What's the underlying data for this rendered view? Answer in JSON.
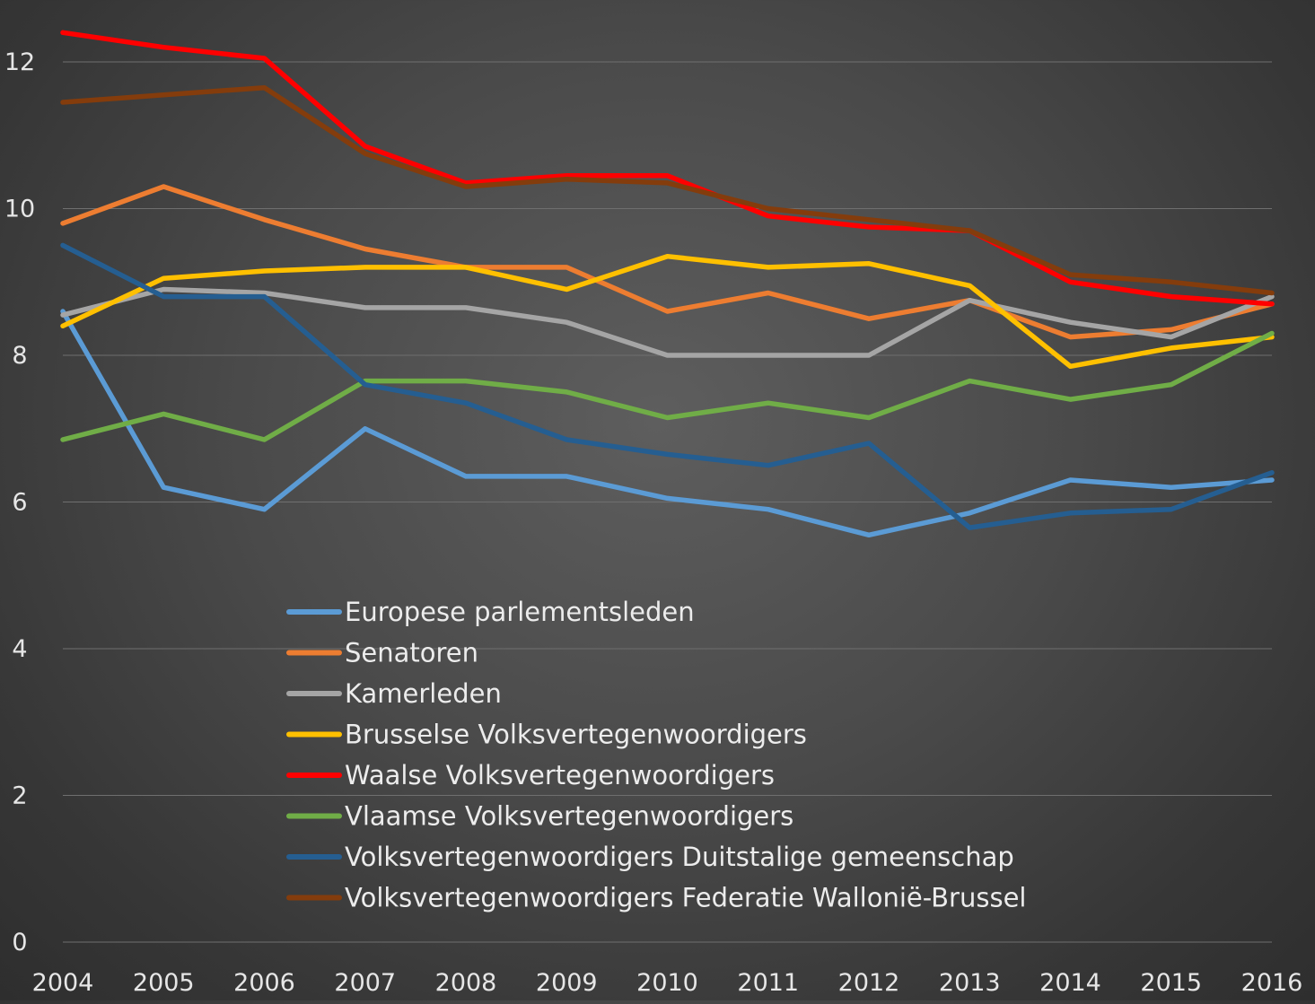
{
  "chart_data": {
    "type": "line",
    "title": "",
    "xlabel": "",
    "ylabel": "",
    "ylim": [
      0,
      12.6
    ],
    "yticks": [
      "0",
      "2",
      "4",
      "6",
      "8",
      "10",
      "12"
    ],
    "ytick_values": [
      0,
      2,
      4,
      6,
      8,
      10,
      12
    ],
    "categories": [
      "2004",
      "2005",
      "2006",
      "2007",
      "2008",
      "2009",
      "2010",
      "2011",
      "2012",
      "2013",
      "2014",
      "2015",
      "2016"
    ],
    "grid": true,
    "legend_position": "center-left, inside plot",
    "series": [
      {
        "name": "Europese parlementsleden",
        "color": "#5b9bd5",
        "values": [
          8.6,
          6.2,
          5.9,
          7.0,
          6.35,
          6.35,
          6.05,
          5.9,
          5.55,
          5.85,
          6.3,
          6.2,
          6.3
        ]
      },
      {
        "name": "Senatoren",
        "color": "#ed7d31",
        "values": [
          9.8,
          10.3,
          9.85,
          9.45,
          9.2,
          9.2,
          8.6,
          8.85,
          8.5,
          8.75,
          8.25,
          8.35,
          8.7
        ]
      },
      {
        "name": "Kamerleden",
        "color": "#a5a5a5",
        "values": [
          8.55,
          8.9,
          8.85,
          8.65,
          8.65,
          8.45,
          8.0,
          8.0,
          8.0,
          8.75,
          8.45,
          8.25,
          8.8
        ]
      },
      {
        "name": "Brusselse Volksvertegenwoordigers",
        "color": "#ffc000",
        "values": [
          8.4,
          9.05,
          9.15,
          9.2,
          9.2,
          8.9,
          9.35,
          9.2,
          9.25,
          8.95,
          7.85,
          8.1,
          8.25
        ]
      },
      {
        "name": "Waalse Volksvertegenwoordigers",
        "color": "#ff0000",
        "values": [
          12.4,
          12.2,
          12.05,
          10.85,
          10.35,
          10.45,
          10.45,
          9.9,
          9.75,
          9.7,
          9.0,
          8.8,
          8.7
        ]
      },
      {
        "name": "Vlaamse Volksvertegenwoordigers",
        "color": "#70ad47",
        "values": [
          6.85,
          7.2,
          6.85,
          7.65,
          7.65,
          7.5,
          7.15,
          7.35,
          7.15,
          7.65,
          7.4,
          7.6,
          8.3
        ]
      },
      {
        "name": "Volksvertegenwoordigers Duitstalige gemeenschap",
        "color": "#255e91",
        "values": [
          9.5,
          8.8,
          8.8,
          7.6,
          7.35,
          6.85,
          6.65,
          6.5,
          6.8,
          5.65,
          5.85,
          5.9,
          6.4
        ]
      },
      {
        "name": "Volksvertegenwoordigers Federatie Wallonië-Brussel",
        "color": "#843c0c",
        "values": [
          11.45,
          11.55,
          11.65,
          10.75,
          10.3,
          10.4,
          10.35,
          10.0,
          9.85,
          9.7,
          9.1,
          9.0,
          8.85
        ]
      }
    ]
  }
}
